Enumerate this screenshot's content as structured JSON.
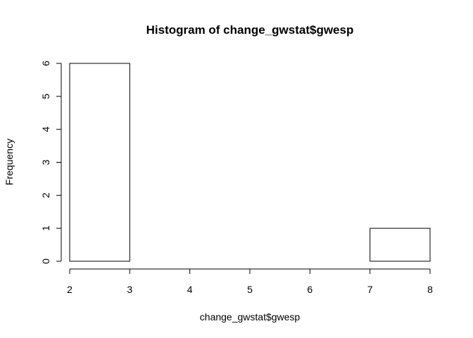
{
  "chart_data": {
    "type": "bar",
    "title": "Histogram of change_gwstat$gwesp",
    "xlabel": "change_gwstat$gwesp",
    "ylabel": "Frequency",
    "bins": [
      {
        "from": 2,
        "to": 3,
        "count": 6
      },
      {
        "from": 3,
        "to": 4,
        "count": 0
      },
      {
        "from": 4,
        "to": 5,
        "count": 0
      },
      {
        "from": 5,
        "to": 6,
        "count": 0
      },
      {
        "from": 6,
        "to": 7,
        "count": 0
      },
      {
        "from": 7,
        "to": 8,
        "count": 1
      }
    ],
    "xlim": [
      2,
      8
    ],
    "ylim": [
      0,
      6
    ],
    "xticks": [
      "2",
      "3",
      "4",
      "5",
      "6",
      "7",
      "8"
    ],
    "yticks": [
      "0",
      "1",
      "2",
      "3",
      "4",
      "5",
      "6"
    ],
    "grid": false,
    "colors": {
      "bar_fill": "#ffffff",
      "bar_stroke": "#000000",
      "text": "#000000"
    }
  }
}
